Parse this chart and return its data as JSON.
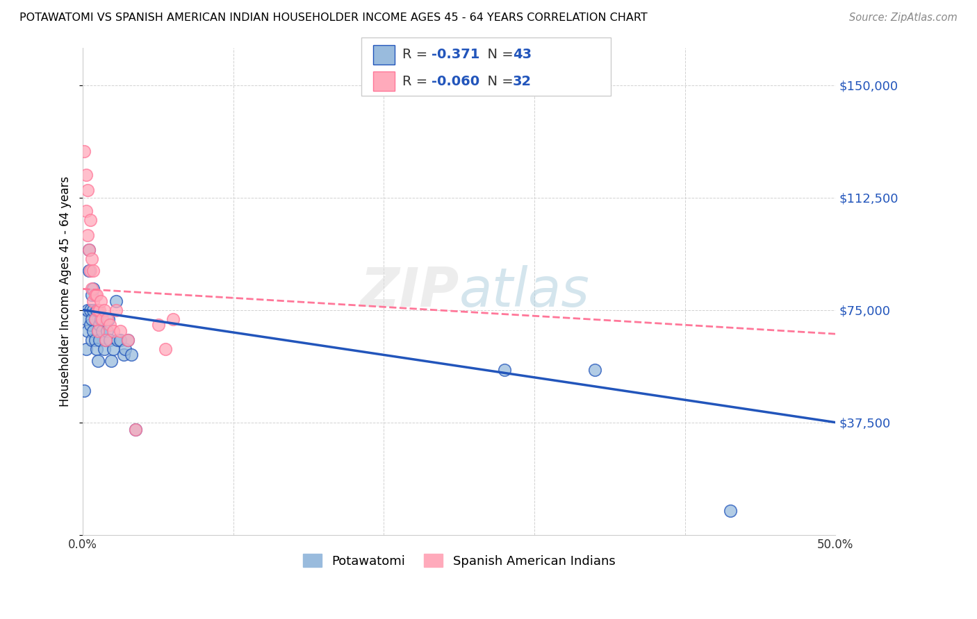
{
  "title": "POTAWATOMI VS SPANISH AMERICAN INDIAN HOUSEHOLDER INCOME AGES 45 - 64 YEARS CORRELATION CHART",
  "source": "Source: ZipAtlas.com",
  "ylabel": "Householder Income Ages 45 - 64 years",
  "xlim": [
    0.0,
    0.5
  ],
  "ylim": [
    0,
    162500
  ],
  "yticks": [
    0,
    37500,
    75000,
    112500,
    150000
  ],
  "ytick_labels": [
    "",
    "$37,500",
    "$75,000",
    "$112,500",
    "$150,000"
  ],
  "xticks": [
    0.0,
    0.1,
    0.2,
    0.3,
    0.4,
    0.5
  ],
  "xtick_labels": [
    "0.0%",
    "",
    "",
    "",
    "",
    "50.0%"
  ],
  "color_blue": "#99BBDD",
  "color_pink": "#FFAABB",
  "line_blue": "#2255BB",
  "line_pink": "#FF7799",
  "legend_R1_val": "-0.371",
  "legend_N1_val": "43",
  "legend_R2_val": "-0.060",
  "legend_N2_val": "32",
  "blue_text_color": "#2255BB",
  "black_text_color": "#333333",
  "potawatomi_x": [
    0.001,
    0.002,
    0.002,
    0.003,
    0.003,
    0.004,
    0.004,
    0.005,
    0.005,
    0.006,
    0.006,
    0.006,
    0.007,
    0.007,
    0.007,
    0.008,
    0.008,
    0.009,
    0.009,
    0.01,
    0.01,
    0.011,
    0.011,
    0.012,
    0.013,
    0.014,
    0.015,
    0.016,
    0.017,
    0.018,
    0.019,
    0.02,
    0.022,
    0.023,
    0.025,
    0.027,
    0.028,
    0.03,
    0.032,
    0.035,
    0.28,
    0.34,
    0.43
  ],
  "potawatomi_y": [
    48000,
    72000,
    62000,
    68000,
    75000,
    88000,
    95000,
    75000,
    70000,
    80000,
    72000,
    65000,
    82000,
    75000,
    68000,
    72000,
    65000,
    75000,
    62000,
    68000,
    58000,
    65000,
    70000,
    72000,
    68000,
    62000,
    65000,
    68000,
    72000,
    65000,
    58000,
    62000,
    78000,
    65000,
    65000,
    60000,
    62000,
    65000,
    60000,
    35000,
    55000,
    55000,
    8000
  ],
  "spanish_x": [
    0.001,
    0.002,
    0.002,
    0.003,
    0.003,
    0.004,
    0.005,
    0.005,
    0.006,
    0.006,
    0.007,
    0.007,
    0.008,
    0.008,
    0.009,
    0.01,
    0.01,
    0.011,
    0.012,
    0.013,
    0.014,
    0.015,
    0.016,
    0.018,
    0.02,
    0.022,
    0.025,
    0.03,
    0.035,
    0.05,
    0.055,
    0.06
  ],
  "spanish_y": [
    128000,
    120000,
    108000,
    115000,
    100000,
    95000,
    88000,
    105000,
    92000,
    82000,
    88000,
    78000,
    80000,
    72000,
    80000,
    75000,
    68000,
    75000,
    78000,
    72000,
    75000,
    65000,
    72000,
    70000,
    68000,
    75000,
    68000,
    65000,
    35000,
    70000,
    62000,
    72000
  ],
  "blue_trend_x0": 0.0,
  "blue_trend_y0": 75000,
  "blue_trend_x1": 0.5,
  "blue_trend_y1": 37500,
  "pink_trend_x0": 0.0,
  "pink_trend_y0": 82000,
  "pink_trend_x1": 0.5,
  "pink_trend_y1": 67000
}
